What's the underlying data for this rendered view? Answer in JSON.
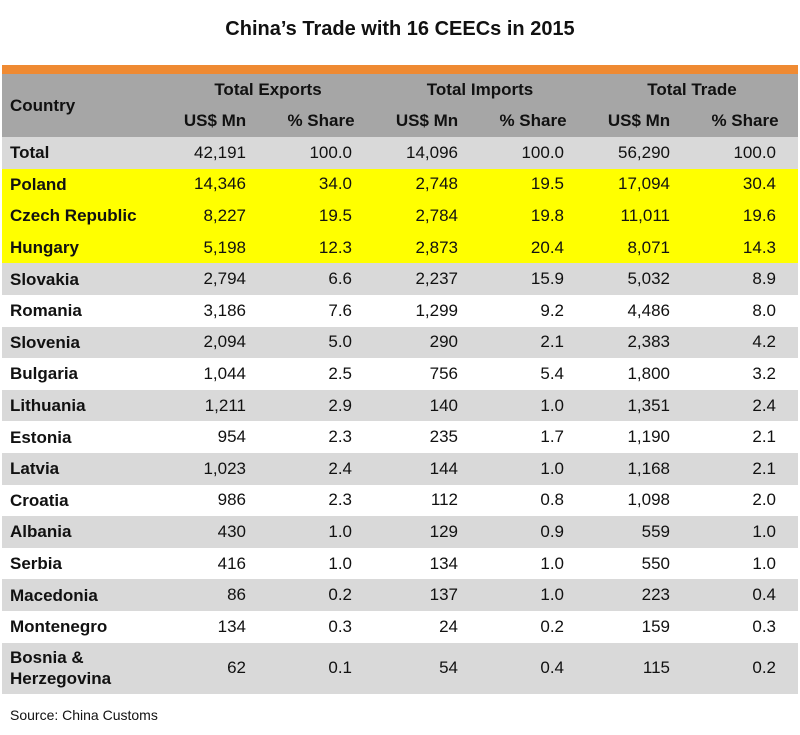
{
  "title": "China’s Trade with 16 CEECs in 2015",
  "header": {
    "country": "Country",
    "groups": [
      "Total Exports",
      "Total Imports",
      "Total Trade"
    ],
    "subheaders": [
      "US$ Mn",
      "% Share",
      "US$ Mn",
      "% Share",
      "US$ Mn",
      "% Share"
    ]
  },
  "rows": [
    {
      "country": "Total",
      "values": [
        "42,191",
        "100.0",
        "14,096",
        "100.0",
        "56,290",
        "100.0"
      ],
      "highlight": false
    },
    {
      "country": "Poland",
      "values": [
        "14,346",
        "34.0",
        "2,748",
        "19.5",
        "17,094",
        "30.4"
      ],
      "highlight": true
    },
    {
      "country": "Czech Republic",
      "values": [
        "8,227",
        "19.5",
        "2,784",
        "19.8",
        "11,011",
        "19.6"
      ],
      "highlight": true
    },
    {
      "country": "Hungary",
      "values": [
        "5,198",
        "12.3",
        "2,873",
        "20.4",
        "8,071",
        "14.3"
      ],
      "highlight": true
    },
    {
      "country": "Slovakia",
      "values": [
        "2,794",
        "6.6",
        "2,237",
        "15.9",
        "5,032",
        "8.9"
      ],
      "highlight": false
    },
    {
      "country": "Romania",
      "values": [
        "3,186",
        "7.6",
        "1,299",
        "9.2",
        "4,486",
        "8.0"
      ],
      "highlight": false
    },
    {
      "country": "Slovenia",
      "values": [
        "2,094",
        "5.0",
        "290",
        "2.1",
        "2,383",
        "4.2"
      ],
      "highlight": false
    },
    {
      "country": "Bulgaria",
      "values": [
        "1,044",
        "2.5",
        "756",
        "5.4",
        "1,800",
        "3.2"
      ],
      "highlight": false
    },
    {
      "country": "Lithuania",
      "values": [
        "1,211",
        "2.9",
        "140",
        "1.0",
        "1,351",
        "2.4"
      ],
      "highlight": false
    },
    {
      "country": "Estonia",
      "values": [
        "954",
        "2.3",
        "235",
        "1.7",
        "1,190",
        "2.1"
      ],
      "highlight": false
    },
    {
      "country": "Latvia",
      "values": [
        "1,023",
        "2.4",
        "144",
        "1.0",
        "1,168",
        "2.1"
      ],
      "highlight": false
    },
    {
      "country": "Croatia",
      "values": [
        "986",
        "2.3",
        "112",
        "0.8",
        "1,098",
        "2.0"
      ],
      "highlight": false
    },
    {
      "country": "Albania",
      "values": [
        "430",
        "1.0",
        "129",
        "0.9",
        "559",
        "1.0"
      ],
      "highlight": false
    },
    {
      "country": "Serbia",
      "values": [
        "416",
        "1.0",
        "134",
        "1.0",
        "550",
        "1.0"
      ],
      "highlight": false
    },
    {
      "country": "Macedonia",
      "values": [
        "86",
        "0.2",
        "137",
        "1.0",
        "223",
        "0.4"
      ],
      "highlight": false
    },
    {
      "country": "Montenegro",
      "values": [
        "134",
        "0.3",
        "24",
        "0.2",
        "159",
        "0.3"
      ],
      "highlight": false
    },
    {
      "country": "Bosnia & Herzegovina",
      "values": [
        "62",
        "0.1",
        "54",
        "0.4",
        "115",
        "0.2"
      ],
      "highlight": false
    }
  ],
  "source": "Source: China Customs",
  "colors": {
    "accent_bar": "#ef8a32",
    "header_bg": "#a6a6a6",
    "row_gray": "#d9d9d9",
    "highlight": "#ffff00"
  }
}
